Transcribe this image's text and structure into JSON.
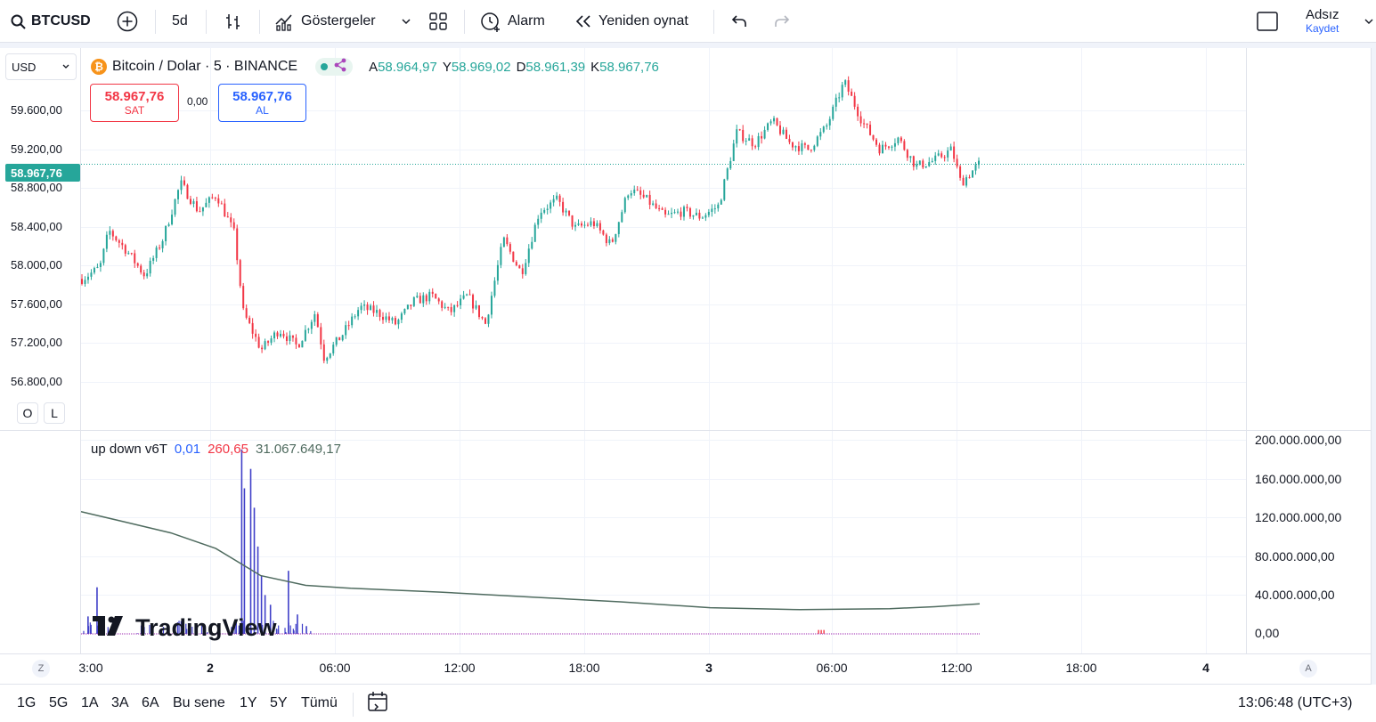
{
  "toolbar": {
    "symbol": "BTCUSD",
    "interval": "5d",
    "indicators_label": "Göstergeler",
    "alarm_label": "Alarm",
    "replay_label": "Yeniden oynat",
    "user_name": "Adsız",
    "save_label": "Kaydet"
  },
  "legend": {
    "coin_glyph": "₿",
    "title": "Bitcoin / Dolar · 5 · BINANCE",
    "open_key": "A",
    "open_val": "58.964,97",
    "high_key": "Y",
    "high_val": "58.969,02",
    "low_key": "D",
    "low_val": "58.961,39",
    "close_key": "K",
    "close_val": "58.967,76"
  },
  "trade": {
    "sell_price": "58.967,76",
    "sell_label": "SAT",
    "spread": "0,00",
    "buy_price": "58.967,76",
    "buy_label": "AL"
  },
  "price_scale": {
    "currency": "USD",
    "labels": [
      "59.600,00",
      "59.200,00",
      "58.800,00",
      "58.400,00",
      "58.000,00",
      "57.600,00",
      "57.200,00",
      "56.800,00"
    ],
    "current_price": "58.967,76",
    "log_btn": "O",
    "lock_btn": "L"
  },
  "indicator": {
    "name": "up down v6T",
    "v1": "0,01",
    "v2": "260,65",
    "v3": "31.067.649,17",
    "scale_labels": [
      "200.000.000,00",
      "160.000.000,00",
      "120.000.000,00",
      "80.000.000,00",
      "40.000.000,00",
      "0,00"
    ]
  },
  "time_axis": {
    "labels": [
      "3:00",
      "2",
      "06:00",
      "12:00",
      "18:00",
      "3",
      "06:00",
      "12:00",
      "18:00",
      "4"
    ],
    "left_btn": "Z",
    "right_btn": "A"
  },
  "watermark": "TradingView",
  "bottom_bar": {
    "ranges": [
      "1G",
      "5G",
      "1A",
      "3A",
      "6A",
      "Bu sene",
      "1Y",
      "5Y",
      "Tümü"
    ],
    "clock": "13:06:48 (UTC+3)"
  },
  "colors": {
    "up": "#26a69a",
    "down": "#f23645",
    "accent": "#2962ff",
    "indicator_line": "#4f6b5f",
    "indicator_bars": "#3f3fc8"
  },
  "chart_data": {
    "type": "candlestick",
    "timeframe_minutes": 5,
    "y_axis_range": [
      56600,
      60000
    ],
    "current_price": 58967.76,
    "price_path": [
      [
        0,
        57950
      ],
      [
        0.02,
        58050
      ],
      [
        0.03,
        58380
      ],
      [
        0.05,
        58200
      ],
      [
        0.07,
        57980
      ],
      [
        0.09,
        58300
      ],
      [
        0.11,
        58800
      ],
      [
        0.13,
        58550
      ],
      [
        0.15,
        58700
      ],
      [
        0.17,
        58350
      ],
      [
        0.18,
        57650
      ],
      [
        0.2,
        57320
      ],
      [
        0.22,
        57500
      ],
      [
        0.24,
        57350
      ],
      [
        0.26,
        57650
      ],
      [
        0.27,
        57250
      ],
      [
        0.29,
        57450
      ],
      [
        0.31,
        57700
      ],
      [
        0.33,
        57650
      ],
      [
        0.35,
        57550
      ],
      [
        0.37,
        57750
      ],
      [
        0.39,
        57800
      ],
      [
        0.41,
        57650
      ],
      [
        0.43,
        57800
      ],
      [
        0.45,
        57550
      ],
      [
        0.47,
        58300
      ],
      [
        0.49,
        58000
      ],
      [
        0.51,
        58550
      ],
      [
        0.53,
        58650
      ],
      [
        0.55,
        58400
      ],
      [
        0.57,
        58450
      ],
      [
        0.59,
        58250
      ],
      [
        0.61,
        58750
      ],
      [
        0.63,
        58650
      ],
      [
        0.65,
        58500
      ],
      [
        0.67,
        58550
      ],
      [
        0.69,
        58500
      ],
      [
        0.71,
        58600
      ],
      [
        0.73,
        59250
      ],
      [
        0.75,
        59150
      ],
      [
        0.77,
        59350
      ],
      [
        0.79,
        59150
      ],
      [
        0.81,
        59100
      ],
      [
        0.83,
        59300
      ],
      [
        0.85,
        59700
      ],
      [
        0.87,
        59350
      ],
      [
        0.89,
        59100
      ],
      [
        0.91,
        59200
      ],
      [
        0.93,
        58950
      ],
      [
        0.95,
        59000
      ],
      [
        0.97,
        59100
      ],
      [
        0.98,
        58800
      ],
      [
        1.0,
        58967
      ]
    ],
    "indicator_line": [
      [
        0,
        126000000
      ],
      [
        0.05,
        115000000
      ],
      [
        0.1,
        104000000
      ],
      [
        0.15,
        88000000
      ],
      [
        0.2,
        60000000
      ],
      [
        0.25,
        50000000
      ],
      [
        0.3,
        47000000
      ],
      [
        0.4,
        43000000
      ],
      [
        0.5,
        38000000
      ],
      [
        0.6,
        33000000
      ],
      [
        0.7,
        27000000
      ],
      [
        0.8,
        25000000
      ],
      [
        0.9,
        26000000
      ],
      [
        0.95,
        28000000
      ],
      [
        1.0,
        31000000
      ]
    ]
  }
}
